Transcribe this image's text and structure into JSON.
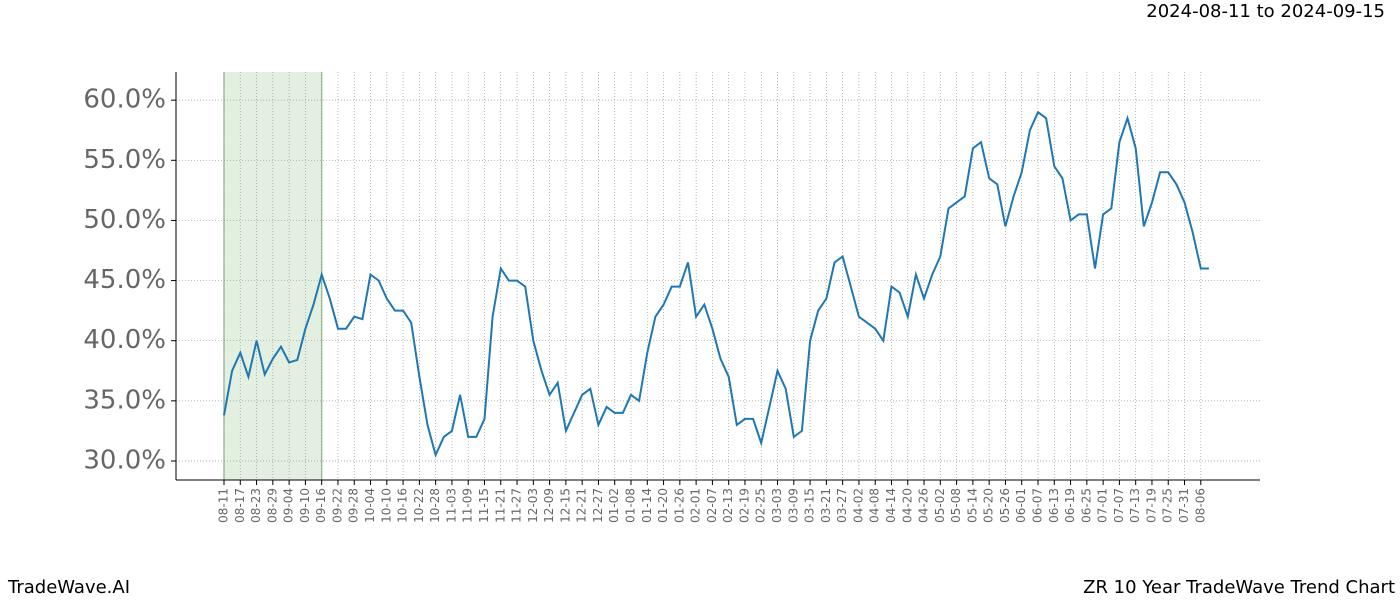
{
  "chart_data": {
    "type": "line",
    "title": "ZR 10 Year TradeWave Trend Chart",
    "subtitle": "2024-08-11 to 2024-09-15",
    "source": "TradeWave.AI",
    "categories": [
      "08-11",
      null,
      "08-17",
      null,
      "08-23",
      null,
      "08-29",
      null,
      "09-04",
      null,
      "09-10",
      null,
      "09-16",
      null,
      "09-22",
      null,
      "09-28",
      null,
      "10-04",
      null,
      "10-10",
      null,
      "10-16",
      null,
      "10-22",
      null,
      "10-28",
      null,
      "11-03",
      null,
      "11-09",
      null,
      "11-15",
      null,
      "11-21",
      null,
      "11-27",
      null,
      "12-03",
      null,
      "12-09",
      null,
      "12-15",
      null,
      "12-21",
      null,
      "12-27",
      null,
      "01-02",
      null,
      "01-08",
      null,
      "01-14",
      null,
      "01-20",
      null,
      "01-26",
      null,
      "02-01",
      null,
      "02-07",
      null,
      "02-13",
      null,
      "02-19",
      null,
      "02-25",
      null,
      "03-03",
      null,
      "03-09",
      null,
      "03-15",
      null,
      "03-21",
      null,
      "03-27",
      null,
      "04-02",
      null,
      "04-08",
      null,
      "04-14",
      null,
      "04-20",
      null,
      "04-26",
      null,
      "05-02",
      null,
      "05-08",
      null,
      "05-14",
      null,
      "05-20",
      null,
      "05-26",
      null,
      "06-01",
      null,
      "06-07",
      null,
      "06-13",
      null,
      "06-19",
      null,
      "06-25",
      null,
      "07-01",
      null,
      "07-07",
      null,
      "07-13",
      null,
      "07-19",
      null,
      "07-25",
      null,
      "07-31",
      null,
      "08-06",
      null
    ],
    "series": [
      {
        "name": "ZR",
        "color": "#1f77b4",
        "values": [
          33.8,
          37.5,
          39.0,
          37.0,
          40.0,
          37.2,
          38.5,
          39.5,
          38.2,
          38.4,
          41.0,
          43.0,
          45.5,
          43.5,
          41.0,
          41.0,
          42.0,
          41.8,
          45.5,
          45.0,
          43.5,
          42.5,
          42.5,
          41.5,
          37.0,
          33.0,
          30.5,
          32.0,
          32.5,
          35.5,
          32.0,
          32.0,
          33.5,
          42.0,
          46.0,
          45.0,
          45.0,
          44.5,
          40.0,
          37.5,
          35.5,
          36.5,
          32.5,
          34.0,
          35.5,
          36.0,
          33.0,
          34.5,
          34.0,
          34.0,
          35.5,
          35.0,
          39.0,
          42.0,
          43.0,
          44.5,
          44.5,
          46.5,
          42.0,
          43.0,
          41.0,
          38.5,
          37.0,
          33.0,
          33.5,
          33.5,
          31.5,
          34.5,
          37.5,
          36.0,
          32.0,
          32.5,
          40.0,
          42.5,
          43.5,
          46.5,
          47.0,
          44.5,
          42.0,
          41.5,
          41.0,
          40.0,
          44.5,
          44.0,
          42.0,
          45.5,
          43.5,
          45.5,
          47.0,
          51.0,
          51.5,
          52.0,
          56.0,
          56.5,
          53.5,
          53.0,
          49.5,
          52.0,
          54.0,
          57.5,
          59.0,
          58.5,
          54.5,
          53.5,
          50.0,
          50.5,
          50.5,
          46.0,
          50.5,
          51.0,
          56.5,
          58.5,
          56.0,
          49.5,
          51.5,
          54.0,
          54.0,
          53.0,
          51.5,
          49.0,
          46.0,
          46.0
        ]
      }
    ],
    "ylim": [
      28.42,
      62.34
    ],
    "yticks": [
      {
        "value": 30,
        "label": "30.0%"
      },
      {
        "value": 35,
        "label": "35.0%"
      },
      {
        "value": 40,
        "label": "40.0%"
      },
      {
        "value": 45,
        "label": "45.0%"
      },
      {
        "value": 50,
        "label": "50.0%"
      },
      {
        "value": 55,
        "label": "55.0%"
      },
      {
        "value": 60,
        "label": "60.0%"
      }
    ],
    "grid": true,
    "shaded_range": [
      "08-11",
      "09-16"
    ]
  }
}
